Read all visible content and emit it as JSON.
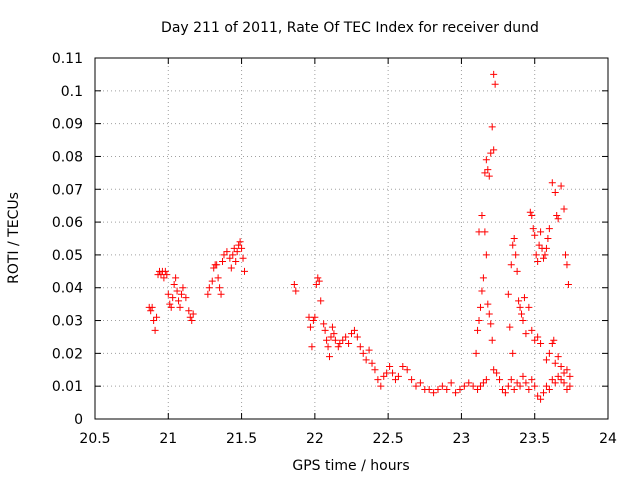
{
  "chart_data": {
    "type": "scatter",
    "title": "Day 211 of 2011, Rate Of TEC Index for receiver dund",
    "xlabel": "GPS time / hours",
    "ylabel": "ROTI / TECUs",
    "xlim": [
      20.5,
      24
    ],
    "ylim": [
      0,
      0.11
    ],
    "xticks": [
      "20.5",
      "21",
      "21.5",
      "22",
      "22.5",
      "23",
      "23.5",
      "24"
    ],
    "yticks": [
      "0",
      "0.01",
      "0.02",
      "0.03",
      "0.04",
      "0.05",
      "0.06",
      "0.07",
      "0.08",
      "0.09",
      "0.1",
      "0.11"
    ],
    "grid": true,
    "marker": "+",
    "color": "#ff0000",
    "series": [
      {
        "points": [
          [
            20.87,
            0.034
          ],
          [
            20.88,
            0.033
          ],
          [
            20.89,
            0.034
          ],
          [
            20.9,
            0.03
          ],
          [
            20.91,
            0.027
          ],
          [
            20.92,
            0.031
          ],
          [
            20.93,
            0.044
          ],
          [
            20.94,
            0.045
          ],
          [
            20.95,
            0.044
          ],
          [
            20.96,
            0.045
          ],
          [
            20.97,
            0.043
          ],
          [
            20.98,
            0.045
          ],
          [
            20.99,
            0.044
          ],
          [
            21.0,
            0.038
          ],
          [
            21.01,
            0.035
          ],
          [
            21.02,
            0.034
          ],
          [
            21.03,
            0.037
          ],
          [
            21.04,
            0.041
          ],
          [
            21.05,
            0.043
          ],
          [
            21.06,
            0.039
          ],
          [
            21.07,
            0.036
          ],
          [
            21.08,
            0.034
          ],
          [
            21.09,
            0.038
          ],
          [
            21.1,
            0.04
          ],
          [
            21.12,
            0.037
          ],
          [
            21.14,
            0.033
          ],
          [
            21.15,
            0.031
          ],
          [
            21.16,
            0.03
          ],
          [
            21.17,
            0.032
          ],
          [
            21.27,
            0.038
          ],
          [
            21.28,
            0.04
          ],
          [
            21.3,
            0.042
          ],
          [
            21.31,
            0.046
          ],
          [
            21.32,
            0.047
          ],
          [
            21.33,
            0.047
          ],
          [
            21.34,
            0.043
          ],
          [
            21.35,
            0.04
          ],
          [
            21.36,
            0.038
          ],
          [
            21.37,
            0.048
          ],
          [
            21.38,
            0.05
          ],
          [
            21.4,
            0.051
          ],
          [
            21.42,
            0.049
          ],
          [
            21.43,
            0.046
          ],
          [
            21.44,
            0.05
          ],
          [
            21.45,
            0.052
          ],
          [
            21.46,
            0.048
          ],
          [
            21.47,
            0.051
          ],
          [
            21.48,
            0.053
          ],
          [
            21.49,
            0.054
          ],
          [
            21.5,
            0.052
          ],
          [
            21.51,
            0.049
          ],
          [
            21.52,
            0.045
          ],
          [
            21.86,
            0.041
          ],
          [
            21.87,
            0.039
          ],
          [
            21.96,
            0.031
          ],
          [
            21.97,
            0.028
          ],
          [
            21.98,
            0.022
          ],
          [
            21.99,
            0.03
          ],
          [
            22.0,
            0.031
          ],
          [
            22.01,
            0.041
          ],
          [
            22.02,
            0.043
          ],
          [
            22.03,
            0.042
          ],
          [
            22.04,
            0.036
          ],
          [
            22.06,
            0.029
          ],
          [
            22.07,
            0.027
          ],
          [
            22.08,
            0.024
          ],
          [
            22.09,
            0.022
          ],
          [
            22.1,
            0.019
          ],
          [
            22.11,
            0.025
          ],
          [
            22.12,
            0.028
          ],
          [
            22.13,
            0.026
          ],
          [
            22.14,
            0.024
          ],
          [
            22.16,
            0.022
          ],
          [
            22.17,
            0.023
          ],
          [
            22.19,
            0.024
          ],
          [
            22.21,
            0.025
          ],
          [
            22.23,
            0.023
          ],
          [
            22.25,
            0.026
          ],
          [
            22.27,
            0.027
          ],
          [
            22.29,
            0.025
          ],
          [
            22.31,
            0.022
          ],
          [
            22.33,
            0.02
          ],
          [
            22.35,
            0.018
          ],
          [
            22.37,
            0.021
          ],
          [
            22.39,
            0.017
          ],
          [
            22.41,
            0.015
          ],
          [
            22.43,
            0.012
          ],
          [
            22.45,
            0.01
          ],
          [
            22.47,
            0.013
          ],
          [
            22.49,
            0.014
          ],
          [
            22.51,
            0.016
          ],
          [
            22.53,
            0.014
          ],
          [
            22.55,
            0.012
          ],
          [
            22.57,
            0.013
          ],
          [
            22.6,
            0.016
          ],
          [
            22.63,
            0.015
          ],
          [
            22.66,
            0.012
          ],
          [
            22.69,
            0.01
          ],
          [
            22.72,
            0.011
          ],
          [
            22.75,
            0.009
          ],
          [
            22.78,
            0.009
          ],
          [
            22.81,
            0.008
          ],
          [
            22.84,
            0.009
          ],
          [
            22.87,
            0.01
          ],
          [
            22.9,
            0.009
          ],
          [
            22.93,
            0.011
          ],
          [
            22.96,
            0.008
          ],
          [
            22.99,
            0.009
          ],
          [
            23.02,
            0.01
          ],
          [
            23.05,
            0.011
          ],
          [
            23.08,
            0.01
          ],
          [
            23.11,
            0.009
          ],
          [
            23.13,
            0.01
          ],
          [
            23.15,
            0.011
          ],
          [
            23.17,
            0.012
          ],
          [
            23.1,
            0.02
          ],
          [
            23.11,
            0.027
          ],
          [
            23.12,
            0.03
          ],
          [
            23.13,
            0.034
          ],
          [
            23.14,
            0.039
          ],
          [
            23.15,
            0.043
          ],
          [
            23.16,
            0.057
          ],
          [
            23.17,
            0.05
          ],
          [
            23.12,
            0.057
          ],
          [
            23.14,
            0.062
          ],
          [
            23.16,
            0.075
          ],
          [
            23.17,
            0.079
          ],
          [
            23.18,
            0.076
          ],
          [
            23.19,
            0.074
          ],
          [
            23.2,
            0.081
          ],
          [
            23.21,
            0.089
          ],
          [
            23.22,
            0.105
          ],
          [
            23.23,
            0.102
          ],
          [
            23.22,
            0.082
          ],
          [
            23.18,
            0.035
          ],
          [
            23.19,
            0.032
          ],
          [
            23.2,
            0.029
          ],
          [
            23.21,
            0.024
          ],
          [
            23.22,
            0.015
          ],
          [
            23.24,
            0.014
          ],
          [
            23.26,
            0.012
          ],
          [
            23.28,
            0.009
          ],
          [
            23.3,
            0.008
          ],
          [
            23.32,
            0.01
          ],
          [
            23.34,
            0.012
          ],
          [
            23.36,
            0.009
          ],
          [
            23.38,
            0.011
          ],
          [
            23.4,
            0.01
          ],
          [
            23.42,
            0.013
          ],
          [
            23.44,
            0.011
          ],
          [
            23.46,
            0.009
          ],
          [
            23.48,
            0.012
          ],
          [
            23.5,
            0.01
          ],
          [
            23.52,
            0.007
          ],
          [
            23.54,
            0.006
          ],
          [
            23.56,
            0.008
          ],
          [
            23.58,
            0.01
          ],
          [
            23.6,
            0.009
          ],
          [
            23.62,
            0.012
          ],
          [
            23.64,
            0.011
          ],
          [
            23.66,
            0.013
          ],
          [
            23.68,
            0.012
          ],
          [
            23.7,
            0.014
          ],
          [
            23.72,
            0.015
          ],
          [
            23.74,
            0.013
          ],
          [
            23.34,
            0.047
          ],
          [
            23.35,
            0.053
          ],
          [
            23.36,
            0.055
          ],
          [
            23.37,
            0.05
          ],
          [
            23.38,
            0.045
          ],
          [
            23.39,
            0.036
          ],
          [
            23.4,
            0.034
          ],
          [
            23.41,
            0.032
          ],
          [
            23.42,
            0.03
          ],
          [
            23.43,
            0.037
          ],
          [
            23.44,
            0.026
          ],
          [
            23.32,
            0.038
          ],
          [
            23.33,
            0.028
          ],
          [
            23.35,
            0.02
          ],
          [
            23.47,
            0.063
          ],
          [
            23.48,
            0.062
          ],
          [
            23.49,
            0.058
          ],
          [
            23.5,
            0.056
          ],
          [
            23.51,
            0.05
          ],
          [
            23.52,
            0.048
          ],
          [
            23.53,
            0.053
          ],
          [
            23.54,
            0.057
          ],
          [
            23.55,
            0.052
          ],
          [
            23.56,
            0.049
          ],
          [
            23.57,
            0.05
          ],
          [
            23.58,
            0.052
          ],
          [
            23.59,
            0.055
          ],
          [
            23.6,
            0.058
          ],
          [
            23.62,
            0.072
          ],
          [
            23.64,
            0.069
          ],
          [
            23.65,
            0.062
          ],
          [
            23.66,
            0.061
          ],
          [
            23.68,
            0.071
          ],
          [
            23.7,
            0.064
          ],
          [
            23.71,
            0.05
          ],
          [
            23.72,
            0.047
          ],
          [
            23.73,
            0.041
          ],
          [
            23.46,
            0.034
          ],
          [
            23.48,
            0.027
          ],
          [
            23.5,
            0.024
          ],
          [
            23.52,
            0.025
          ],
          [
            23.54,
            0.023
          ],
          [
            23.58,
            0.018
          ],
          [
            23.6,
            0.02
          ],
          [
            23.62,
            0.023
          ],
          [
            23.63,
            0.024
          ],
          [
            23.64,
            0.017
          ],
          [
            23.66,
            0.019
          ],
          [
            23.68,
            0.016
          ],
          [
            23.7,
            0.011
          ],
          [
            23.72,
            0.009
          ],
          [
            23.74,
            0.01
          ]
        ]
      }
    ]
  }
}
